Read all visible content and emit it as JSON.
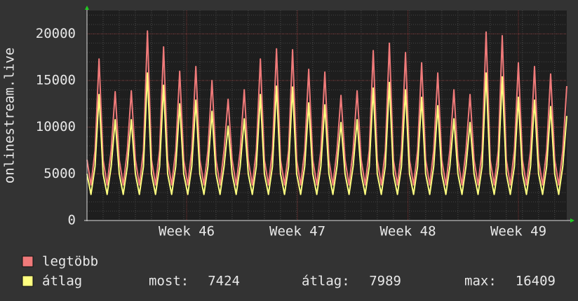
{
  "chart_data": {
    "type": "line",
    "y_label": "onlinestream.live",
    "x": [
      0,
      0.25,
      0.5,
      0.75,
      1,
      1.25,
      1.5,
      1.75,
      2,
      2.25,
      2.5,
      2.75,
      3,
      3.25,
      3.5,
      3.75,
      4,
      4.25,
      4.5,
      4.75,
      5,
      5.25,
      5.5,
      5.75,
      6,
      6.25,
      6.5,
      6.75,
      7,
      7.25,
      7.5,
      7.75,
      8,
      8.25,
      8.5,
      8.75,
      9,
      9.25,
      9.5,
      9.75,
      10,
      10.25,
      10.5,
      10.75,
      11,
      11.25,
      11.5,
      11.75,
      12,
      12.25,
      12.5,
      12.75,
      13,
      13.25,
      13.5,
      13.75,
      14,
      14.25,
      14.5,
      14.75,
      15,
      15.25,
      15.5,
      15.75,
      16,
      16.25,
      16.5,
      16.75,
      17,
      17.25,
      17.5,
      17.75,
      18,
      18.25,
      18.5,
      18.75,
      19,
      19.25,
      19.5,
      19.75,
      20,
      20.25,
      20.5,
      20.75,
      21,
      21.25,
      21.5,
      21.75,
      22,
      22.25,
      22.5,
      22.75,
      23,
      23.25,
      23.5,
      23.75,
      24,
      24.25,
      24.5,
      24.75,
      25,
      25.25,
      25.5,
      25.75,
      26,
      26.25,
      26.5,
      26.75,
      27,
      27.25,
      27.5,
      27.75,
      28,
      28.25,
      28.5,
      28.75,
      29,
      29.25,
      29.5,
      29.75
    ],
    "series": [
      {
        "name": "legtöbb",
        "color": "#f07a7a",
        "values": [
          6500,
          3800,
          7500,
          17300,
          6500,
          3800,
          7500,
          13800,
          6500,
          3800,
          7500,
          13900,
          6500,
          3800,
          7500,
          20300,
          6500,
          3800,
          7500,
          18600,
          6500,
          3800,
          7500,
          16000,
          6500,
          3800,
          7500,
          16500,
          6500,
          3800,
          7500,
          15000,
          6500,
          3800,
          7500,
          13000,
          6500,
          3800,
          7500,
          14000,
          6500,
          3800,
          7500,
          17300,
          6500,
          3800,
          7500,
          18400,
          6500,
          3800,
          7500,
          18300,
          6500,
          3800,
          7500,
          16200,
          6500,
          3800,
          7500,
          15900,
          6500,
          3800,
          7500,
          13400,
          6500,
          3800,
          7500,
          13900,
          6500,
          3800,
          7500,
          18200,
          6500,
          3800,
          7500,
          19000,
          6500,
          3800,
          7500,
          18000,
          6500,
          3800,
          7500,
          16900,
          6500,
          3800,
          7500,
          15800,
          6500,
          3800,
          7500,
          14000,
          6500,
          3800,
          7500,
          13500,
          6500,
          3800,
          7500,
          20200,
          6500,
          3800,
          7500,
          19800,
          6500,
          3800,
          7500,
          16900,
          6500,
          3800,
          7500,
          16500,
          6500,
          3800,
          7500,
          15700,
          6500,
          3800,
          7500,
          14400
        ]
      },
      {
        "name": "átlag",
        "color": "#ffff80",
        "values": [
          5000,
          2800,
          5800,
          13500,
          5000,
          2800,
          5800,
          10800,
          5000,
          2800,
          5800,
          10800,
          5000,
          2800,
          5800,
          15800,
          5000,
          2800,
          5800,
          14500,
          5000,
          2800,
          5800,
          12500,
          5000,
          2800,
          5800,
          12900,
          5000,
          2800,
          5800,
          11700,
          5000,
          2800,
          5800,
          10100,
          5000,
          2800,
          5800,
          10900,
          5000,
          2800,
          5800,
          13500,
          5000,
          2800,
          5800,
          14400,
          5000,
          2800,
          5800,
          14300,
          5000,
          2800,
          5800,
          12600,
          5000,
          2800,
          5800,
          12400,
          5000,
          2800,
          5800,
          10500,
          5000,
          2800,
          5800,
          10800,
          5000,
          2800,
          5800,
          14200,
          5000,
          2800,
          5800,
          14800,
          5000,
          2800,
          5800,
          14000,
          5000,
          2800,
          5800,
          13200,
          5000,
          2800,
          5800,
          12300,
          5000,
          2800,
          5800,
          10900,
          5000,
          2800,
          5800,
          10500,
          5000,
          2800,
          5800,
          15800,
          5000,
          2800,
          5800,
          15400,
          5000,
          2800,
          5800,
          13200,
          5000,
          2800,
          5800,
          12900,
          5000,
          2800,
          5800,
          12200,
          5000,
          2800,
          5800,
          11200
        ]
      }
    ],
    "xlim": [
      0,
      29.75
    ],
    "xticks": [
      {
        "value": 6.18,
        "label": "Week 46"
      },
      {
        "value": 13.05,
        "label": "Week 47"
      },
      {
        "value": 19.9,
        "label": "Week 48"
      },
      {
        "value": 26.75,
        "label": "Week 49"
      }
    ],
    "ylim": [
      0,
      22500
    ],
    "yticks": [
      0,
      5000,
      10000,
      15000,
      20000
    ],
    "grid": true,
    "stats": [
      {
        "label": "most:",
        "value": 7424
      },
      {
        "label": "átlag:",
        "value": 7989
      },
      {
        "label": "max:",
        "value": 16409
      }
    ]
  }
}
